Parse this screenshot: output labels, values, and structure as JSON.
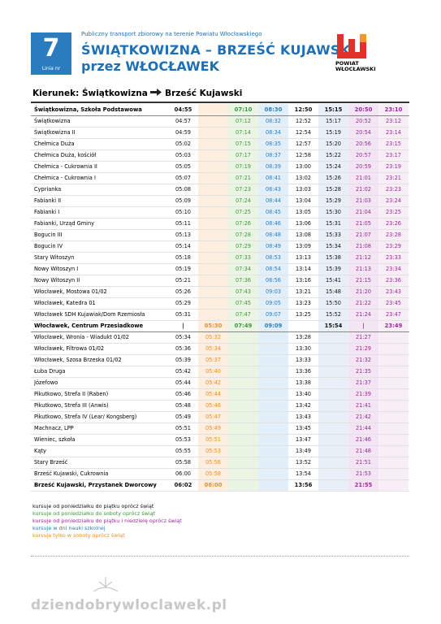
{
  "header": {
    "subtitle": "Publiczny transport zbiorowy na terenie Powiatu Włocławskiego",
    "line_number": "7",
    "line_label": "Linia nr",
    "title": "ŚWIĄTKOWIZNA – BRZEŚĆ KUJAWSKI",
    "title2": "przez WŁOCŁAWEK",
    "logo_text": "POWIAT\nWŁOCŁAWSKI"
  },
  "direction": {
    "label": "Kierunek: Świątkowizna",
    "destination": "Brześć Kujawski"
  },
  "table": {
    "rows": [
      [
        "Świątkowizna, Szkoła Podstawowa",
        "04:55",
        null,
        "07:10",
        "08:30",
        "12:50",
        "15:15",
        "20:50",
        "23:10"
      ],
      [
        "Świątkowizna",
        "04:57",
        null,
        "07:12",
        "08:32",
        "12:52",
        "15:17",
        "20:52",
        "23:12"
      ],
      [
        "Świątkowizna II",
        "04:59",
        null,
        "07:14",
        "08:34",
        "12:54",
        "15:19",
        "20:54",
        "23:14"
      ],
      [
        "Chełmica Duża",
        "05:02",
        null,
        "07:15",
        "08:35",
        "12:57",
        "15:20",
        "20:56",
        "23:15"
      ],
      [
        "Chełmica Duża, kościół",
        "05:03",
        null,
        "07:17",
        "08:37",
        "12:58",
        "15:22",
        "20:57",
        "23:17"
      ],
      [
        "Chełmica - Cukrownia II",
        "05:05",
        null,
        "07:19",
        "08:39",
        "13:00",
        "15:24",
        "20:59",
        "23:19"
      ],
      [
        "Chełmica - Cukrownia I",
        "05:07",
        null,
        "07:21",
        "08:41",
        "13:02",
        "15:26",
        "21:01",
        "23:21"
      ],
      [
        "Cyprianka",
        "05:08",
        null,
        "07:23",
        "08:43",
        "13:03",
        "15:28",
        "21:02",
        "23:23"
      ],
      [
        "Fabianki II",
        "05:09",
        null,
        "07:24",
        "08:44",
        "13:04",
        "15:29",
        "21:03",
        "23:24"
      ],
      [
        "Fabianki I",
        "05:10",
        null,
        "07:25",
        "08:45",
        "13:05",
        "15:30",
        "21:04",
        "23:25"
      ],
      [
        "Fabianki, Urząd Gminy",
        "05:11",
        null,
        "07:26",
        "08:46",
        "13:06",
        "15:31",
        "21:05",
        "23:26"
      ],
      [
        "Bogucin III",
        "05:13",
        null,
        "07:28",
        "08:48",
        "13:08",
        "15:33",
        "21:07",
        "23:28"
      ],
      [
        "Bogucin IV",
        "05:14",
        null,
        "07:29",
        "08:49",
        "13:09",
        "15:34",
        "21:08",
        "23:29"
      ],
      [
        "Stary Witoszyn",
        "05:18",
        null,
        "07:33",
        "08:53",
        "13:13",
        "15:38",
        "21:12",
        "23:33"
      ],
      [
        "Nowy Witoszyn I",
        "05:19",
        null,
        "07:34",
        "08:54",
        "13:14",
        "15:39",
        "21:13",
        "23:34"
      ],
      [
        "Nowy Witoszyn II",
        "05:21",
        null,
        "07:36",
        "08:56",
        "13:16",
        "15:41",
        "21:15",
        "23:36"
      ],
      [
        "Włocławek, Mostowa 01/02",
        "05:26",
        null,
        "07:43",
        "09:03",
        "13:21",
        "15:48",
        "21:20",
        "23:43"
      ],
      [
        "Włocławek, Katedra 01",
        "05:29",
        null,
        "07:45",
        "09:05",
        "13:23",
        "15:50",
        "21:22",
        "23:45"
      ],
      [
        "Włocławek SDH Kujawiak/Dom Rzemiosła",
        "05:31",
        null,
        "07:47",
        "09:07",
        "13:25",
        "15:52",
        "21:24",
        "23:47"
      ],
      [
        "Włocławek, Centrum Przesiadkowe",
        "|",
        "05:30",
        "07:49",
        "09:09",
        null,
        "15:54",
        "|",
        "23:49"
      ],
      [
        "Włocławek, Wronia - Wiadukt 01/02",
        "05:34",
        "05:32",
        null,
        null,
        "13:28",
        null,
        "21:27",
        null
      ],
      [
        "Włocławek, Filtrowa 01/02",
        "05:36",
        "05:34",
        null,
        null,
        "13:30",
        null,
        "21:29",
        null
      ],
      [
        "Włocławek, Szosa Brzeska 01/02",
        "05:39",
        "05:37",
        null,
        null,
        "13:33",
        null,
        "21:32",
        null
      ],
      [
        "Łuba Druga",
        "05:42",
        "05:40",
        null,
        null,
        "13:36",
        null,
        "21:35",
        null
      ],
      [
        "Józefowo",
        "05:44",
        "05:42",
        null,
        null,
        "13:38",
        null,
        "21:37",
        null
      ],
      [
        "Pikutkowo, Strefa II (Raben)",
        "05:46",
        "05:44",
        null,
        null,
        "13:40",
        null,
        "21:39",
        null
      ],
      [
        "Pikutkowo, Strefa III (Anwis)",
        "05:48",
        "05:46",
        null,
        null,
        "13:42",
        null,
        "21:41",
        null
      ],
      [
        "Pikutkowo, Strefa IV (Lear/ Kongsberg)",
        "05:49",
        "05:47",
        null,
        null,
        "13:43",
        null,
        "21:42",
        null
      ],
      [
        "Machnacz, LPP",
        "05:51",
        "05:49",
        null,
        null,
        "13:45",
        null,
        "21:44",
        null
      ],
      [
        "Wieniec, szkoła",
        "05:53",
        "05:51",
        null,
        null,
        "13:47",
        null,
        "21:46",
        null
      ],
      [
        "Kąty",
        "05:55",
        "05:53",
        null,
        null,
        "13:49",
        null,
        "21:48",
        null
      ],
      [
        "Stary Brześć",
        "05:58",
        "05:56",
        null,
        null,
        "13:52",
        null,
        "21:51",
        null
      ],
      [
        "Brześć Kujawski, Cukrownia",
        "06:00",
        "05:58",
        null,
        null,
        "13:54",
        null,
        "21:53",
        null
      ],
      [
        "Brześć Kujawski, Przystanek Dworcowy",
        "06:02",
        "06:00",
        null,
        null,
        "13:56",
        null,
        "21:55",
        null
      ]
    ]
  },
  "legend": [
    "kursuje od poniedziałku do piątku oprócz świąt",
    "kursuje od poniedziałku do soboty oprócz świąt",
    "kursuje od poniedziałku do piątku i niedzielę oprócz świąt",
    "kursuje w dni nauki szkolnej",
    "kursuje tylko w soboty oprócz świąt"
  ],
  "footer": {
    "watermark": "dziendobrywloclawek.pl"
  }
}
